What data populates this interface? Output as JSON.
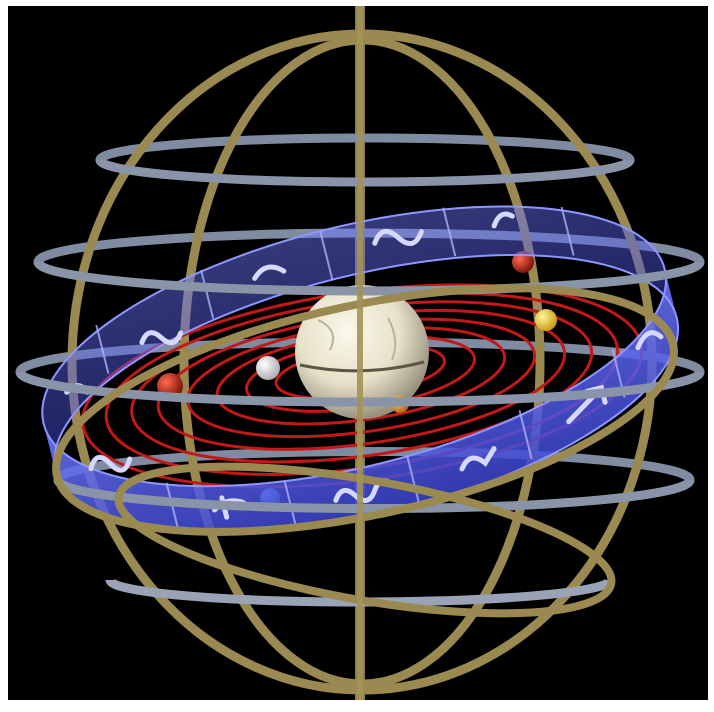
{
  "image": {
    "subject": "armillary-sphere",
    "background_color": "#000000",
    "border_color": "#ffffff",
    "colors": {
      "ring_gold": "#9a8a52",
      "ring_silver": "#7f8ba0",
      "zodiac_band": "#4a55e6",
      "zodiac_glyph": "#c9cdf5",
      "orbit_red": "#c41818",
      "earth_sphere": "#e7e1c9",
      "planet_red": "#b8231a",
      "planet_white": "#f2f2f2",
      "planet_yellow": "#f2d63a",
      "planet_orange": "#e59a2e",
      "planet_blue": "#6fb4e0"
    },
    "planets": [
      {
        "name": "red-planet-left",
        "color": "#b8231a"
      },
      {
        "name": "white-planet",
        "color": "#f2f2f2"
      },
      {
        "name": "orange-planet",
        "color": "#e59a2e"
      },
      {
        "name": "red-planet-right",
        "color": "#b8231a"
      },
      {
        "name": "yellow-planet",
        "color": "#f2d63a"
      },
      {
        "name": "blue-planet",
        "color": "#6fb4e0"
      }
    ],
    "orbit_count": 9
  }
}
